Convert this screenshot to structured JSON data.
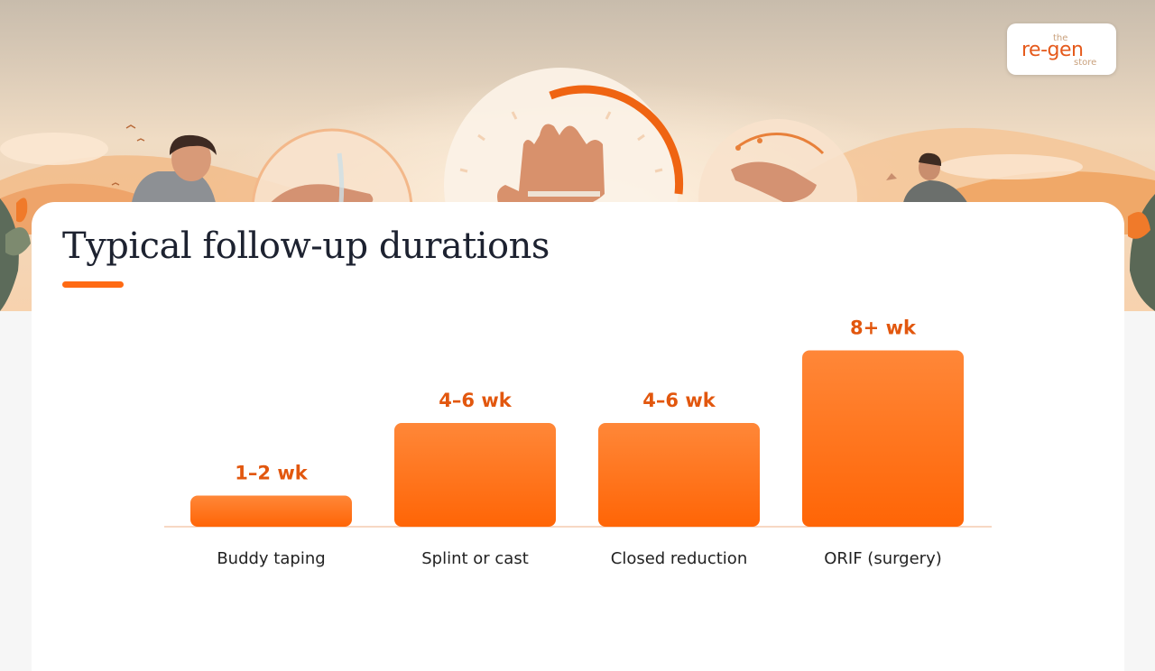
{
  "brand": {
    "logo_top": "the",
    "logo_main": "re-gen",
    "logo_bottom": "store"
  },
  "slide": {
    "title": "Typical follow-up durations"
  },
  "colors": {
    "accent": "#ff6a13",
    "value_label": "#e2570e",
    "bar_top": "#ff8738",
    "bar_bottom": "#ff6506",
    "title": "#1d2230"
  },
  "chart_data": {
    "type": "bar",
    "title": "Typical follow-up durations",
    "categories": [
      "Buddy taping",
      "Splint or cast",
      "Closed reduction",
      "ORIF (surgery)"
    ],
    "values": [
      1.5,
      5,
      5,
      8.5
    ],
    "value_labels": [
      "1–2 wk",
      "4–6 wk",
      "4–6 wk",
      "8+ wk"
    ],
    "ylim": [
      0,
      10
    ],
    "xlabel": "",
    "ylabel": "",
    "grid": false,
    "legend": "none"
  }
}
